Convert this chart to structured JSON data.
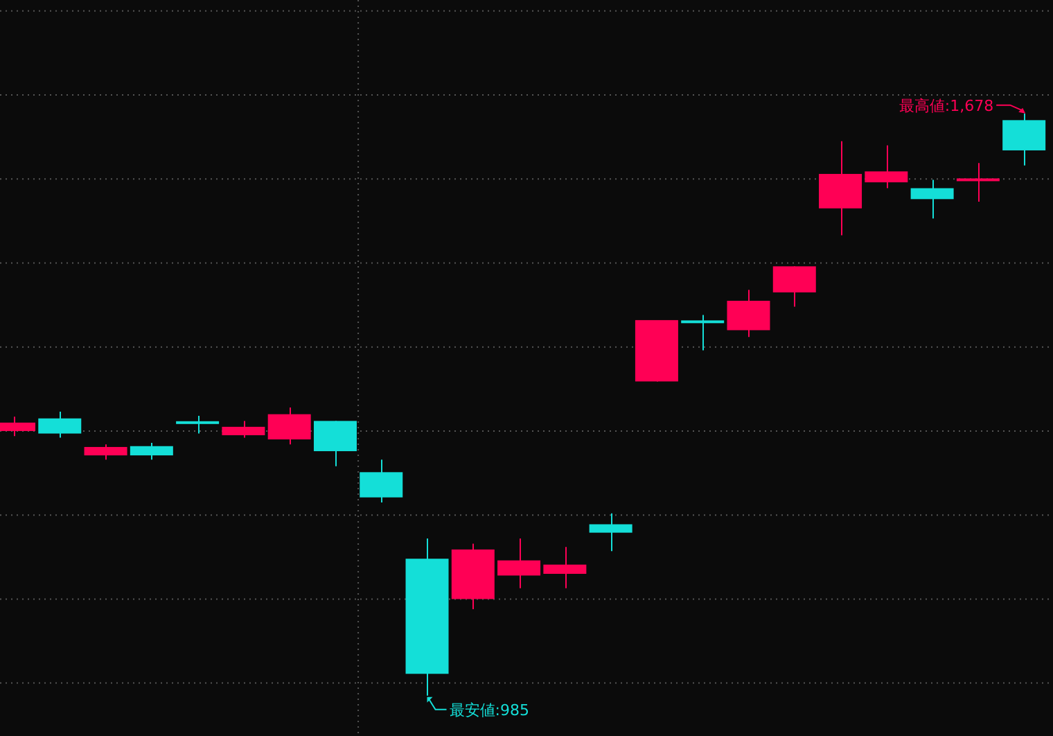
{
  "chart_data": {
    "type": "candlestick",
    "categories": [
      null,
      null,
      null,
      null,
      null,
      null,
      null,
      null,
      null,
      null,
      null,
      null,
      null,
      null,
      null,
      null,
      null,
      null,
      null,
      null,
      null,
      null,
      null
    ],
    "ohlc": [
      [
        1300,
        1317,
        1294,
        1310
      ],
      [
        1315,
        1323,
        1292,
        1297
      ],
      [
        1271,
        1284,
        1266,
        1281
      ],
      [
        1282,
        1286,
        1266,
        1271
      ],
      [
        1310,
        1318,
        1297,
        1310
      ],
      [
        1295,
        1312,
        1292,
        1305
      ],
      [
        1290,
        1328,
        1284,
        1320
      ],
      [
        1312,
        1312,
        1258,
        1276
      ],
      [
        1251,
        1266,
        1215,
        1221
      ],
      [
        1148,
        1172,
        985,
        1011
      ],
      [
        1100,
        1166,
        1088,
        1159
      ],
      [
        1128,
        1172,
        1113,
        1146
      ],
      [
        1130,
        1162,
        1113,
        1141
      ],
      [
        1189,
        1202,
        1157,
        1179
      ],
      [
        1359,
        1432,
        1359,
        1432
      ],
      [
        1430,
        1438,
        1396,
        1430
      ],
      [
        1420,
        1468,
        1412,
        1455
      ],
      [
        1465,
        1496,
        1448,
        1496
      ],
      [
        1565,
        1645,
        1533,
        1606
      ],
      [
        1596,
        1640,
        1589,
        1609
      ],
      [
        1589,
        1599,
        1553,
        1576
      ],
      [
        1599,
        1619,
        1573,
        1599
      ],
      [
        1670,
        1678,
        1616,
        1634
      ]
    ],
    "colors": [
      "#ff0055",
      "#14dfd8",
      "#ff0055",
      "#14dfd8",
      "#14dfd8",
      "#ff0055",
      "#ff0055",
      "#14dfd8",
      "#14dfd8",
      "#14dfd8",
      "#ff0055",
      "#ff0055",
      "#ff0055",
      "#14dfd8",
      "#ff0055",
      "#14dfd8",
      "#ff0055",
      "#ff0055",
      "#ff0055",
      "#ff0055",
      "#14dfd8",
      "#ff0055",
      "#14dfd8"
    ],
    "ylim": [
      937,
      1813
    ],
    "yticks": [
      {
        "value": 1000,
        "label": null
      },
      {
        "value": 1100,
        "label": null
      },
      {
        "value": 1200,
        "label": null
      },
      {
        "value": 1300,
        "label": null
      },
      {
        "value": 1400,
        "label": null
      },
      {
        "value": 1500,
        "label": null
      },
      {
        "value": 1600,
        "label": null
      },
      {
        "value": 1700,
        "label": null
      },
      {
        "value": 1800,
        "label": null
      }
    ],
    "grid": "y",
    "annotations": [
      "最高値:1,678",
      "最安値:985"
    ]
  }
}
